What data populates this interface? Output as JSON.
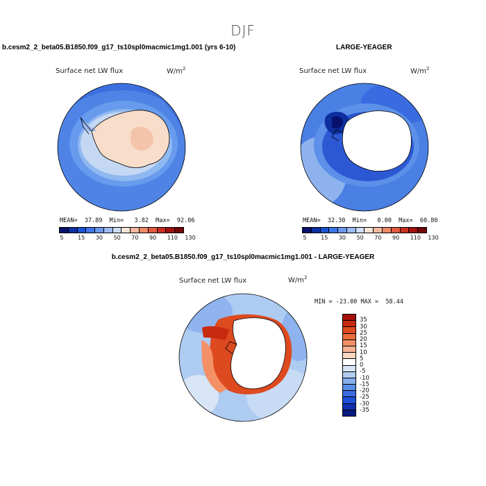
{
  "figure": {
    "season": "DJF",
    "case_label": "b.cesm2_2_beta05.B1850.f09_g17_ts10spl0macmic1mg1.001 (yrs 6-10)",
    "obs_label": "LARGE-YEAGER",
    "diff_label": "b.cesm2_2_beta05.B1850.f09_g17_ts10spl0macmic1mg1.001 - LARGE-YEAGER"
  },
  "panels": {
    "case": {
      "variable": "Surface net LW flux",
      "units_base": "W/m",
      "units_exp": "2",
      "stats": "MEAN=  37.89  Min=   3.82  Max=  92.06"
    },
    "obs": {
      "variable": "Surface net LW flux",
      "units_base": "W/m",
      "units_exp": "2",
      "stats": "MEAN=  32.30  Min=   0.00  Max=  60.80"
    },
    "diff": {
      "variable": "Surface net LW flux",
      "units_base": "W/m",
      "units_exp": "2",
      "stats": "MIN = -23.00 MAX =  58.44"
    }
  },
  "colorbar_abs": {
    "colors": [
      "#08116b",
      "#0d2fa0",
      "#1c52d0",
      "#3f75e6",
      "#6b98ea",
      "#9dbcf0",
      "#cddff5",
      "#f6e4d6",
      "#f3b9a0",
      "#ec8a6a",
      "#e05a3e",
      "#c73020",
      "#a01210",
      "#700808"
    ],
    "labels": [
      "5",
      "15",
      "30",
      "50",
      "70",
      "90",
      "110",
      "130"
    ]
  },
  "colorbar_diff": {
    "colors": [
      "#a51008",
      "#c82a10",
      "#de4a20",
      "#ec6c3a",
      "#f39066",
      "#f7b394",
      "#fbd6c1",
      "#ffffff",
      "#d7e5f7",
      "#b2cdf2",
      "#86aeec",
      "#5b8ee8",
      "#3a6de3",
      "#1d4fd8",
      "#0e30b0",
      "#061a80"
    ],
    "labels": [
      "35",
      "30",
      "25",
      "20",
      "15",
      "10",
      "5",
      "0",
      "-5",
      "-10",
      "-15",
      "-20",
      "-25",
      "-30",
      "-35"
    ]
  }
}
